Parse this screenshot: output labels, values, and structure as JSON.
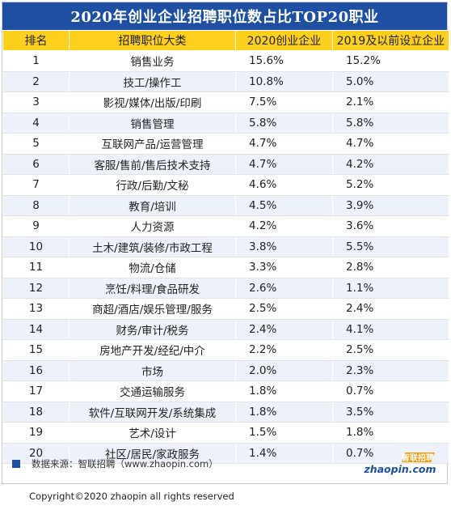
{
  "title": "2020年创业企业招聘职位数占比TOP20职业",
  "columns": [
    "排名",
    "招聘职位大类",
    "2020创业企业",
    "2019及以前设立企业"
  ],
  "rows": [
    {
      "rank": "1",
      "category": "销售业务",
      "y2020": "15.6%",
      "y2019": "15.2%"
    },
    {
      "rank": "2",
      "category": "技工/操作工",
      "y2020": "10.8%",
      "y2019": "5.0%"
    },
    {
      "rank": "3",
      "category": "影视/媒体/出版/印刷",
      "y2020": "7.5%",
      "y2019": "2.1%"
    },
    {
      "rank": "4",
      "category": "销售管理",
      "y2020": "5.8%",
      "y2019": "5.8%"
    },
    {
      "rank": "5",
      "category": "互联网产品/运营管理",
      "y2020": "4.7%",
      "y2019": "4.7%"
    },
    {
      "rank": "6",
      "category": "客服/售前/售后技术支持",
      "y2020": "4.7%",
      "y2019": "4.2%"
    },
    {
      "rank": "7",
      "category": "行政/后勤/文秘",
      "y2020": "4.6%",
      "y2019": "5.2%"
    },
    {
      "rank": "8",
      "category": "教育/培训",
      "y2020": "4.5%",
      "y2019": "3.9%"
    },
    {
      "rank": "9",
      "category": "人力资源",
      "y2020": "4.2%",
      "y2019": "3.6%"
    },
    {
      "rank": "10",
      "category": "土木/建筑/装修/市政工程",
      "y2020": "3.8%",
      "y2019": "5.5%"
    },
    {
      "rank": "11",
      "category": "物流/仓储",
      "y2020": "3.3%",
      "y2019": "2.8%"
    },
    {
      "rank": "12",
      "category": "烹饪/料理/食品研发",
      "y2020": "2.6%",
      "y2019": "1.1%"
    },
    {
      "rank": "13",
      "category": "商超/酒店/娱乐管理/服务",
      "y2020": "2.5%",
      "y2019": "2.4%"
    },
    {
      "rank": "14",
      "category": "财务/审计/税务",
      "y2020": "2.4%",
      "y2019": "4.1%"
    },
    {
      "rank": "15",
      "category": "房地产开发/经纪/中介",
      "y2020": "2.2%",
      "y2019": "2.5%"
    },
    {
      "rank": "16",
      "category": "市场",
      "y2020": "2.0%",
      "y2019": "2.3%"
    },
    {
      "rank": "17",
      "category": "交通运输服务",
      "y2020": "1.8%",
      "y2019": "0.7%"
    },
    {
      "rank": "18",
      "category": "软件/互联网开发/系统集成",
      "y2020": "1.8%",
      "y2019": "3.5%"
    },
    {
      "rank": "19",
      "category": "艺术/设计",
      "y2020": "1.5%",
      "y2019": "1.8%"
    },
    {
      "rank": "20",
      "category": "社区/居民/家政服务",
      "y2020": "1.4%",
      "y2019": "0.7%"
    }
  ],
  "source": "数据来源：智联招聘（www.zhaopin.com）",
  "logo": {
    "top": "智联招聘",
    "bottom": "zhaopin.com"
  },
  "copyright": "Copyright©2020 zhaopin all rights reserved",
  "colors": {
    "title_bg": "#1f4fa3",
    "header_bg": "#fdd01d",
    "stripe": "#edf1f9",
    "logo_orange": "#f39800",
    "logo_blue": "#1f4fa3"
  }
}
